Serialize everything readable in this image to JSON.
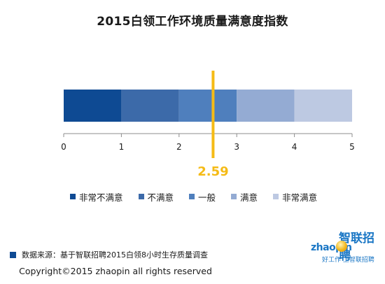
{
  "chart_data": {
    "type": "bar",
    "orientation": "horizontal-stacked",
    "title": "2015白领工作环境质量满意度指数",
    "categories": [
      "非常不满意",
      "不满意",
      "一般",
      "满意",
      "非常满意"
    ],
    "segments": [
      {
        "name": "非常不满意",
        "start": 0,
        "end": 1,
        "color": "#0e4a93"
      },
      {
        "name": "不满意",
        "start": 1,
        "end": 2,
        "color": "#3c6aa9"
      },
      {
        "name": "一般",
        "start": 2,
        "end": 3,
        "color": "#4f7fbd"
      },
      {
        "name": "满意",
        "start": 3,
        "end": 4,
        "color": "#94abd3"
      },
      {
        "name": "非常满意",
        "start": 4,
        "end": 5,
        "color": "#bdc9e2"
      }
    ],
    "xlim": [
      0,
      5
    ],
    "xticks": [
      "0",
      "1",
      "2",
      "3",
      "4",
      "5"
    ],
    "marker": {
      "value": 2.59,
      "label": "2.59",
      "color": "#f5bb16"
    },
    "legend": "bottom",
    "grid": false
  },
  "footer": {
    "source": "数据来源：基于智联招聘2015白领8小时生存质量调查",
    "copyright": "Copyright©2015 zhaopin all rights reserved",
    "source_marker_color": "#0e4a93"
  },
  "logo": {
    "name": "智联招聘",
    "latin": "zhaopin",
    "tagline": "好工作 上智联招聘"
  }
}
